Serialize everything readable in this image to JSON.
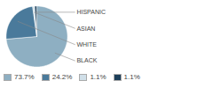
{
  "chart_data": {
    "type": "pie",
    "categories": [
      "BLACK",
      "WHITE",
      "ASIAN",
      "HISPANIC"
    ],
    "values": [
      73.7,
      24.2,
      1.1,
      1.1
    ],
    "value_labels": [
      "73.7%",
      "24.2%",
      "1.1%",
      "1.1%"
    ],
    "colors": [
      "#8eafc2",
      "#4a7a9b",
      "#d0dfe8",
      "#1c3f5a"
    ],
    "legend": "lower left"
  }
}
